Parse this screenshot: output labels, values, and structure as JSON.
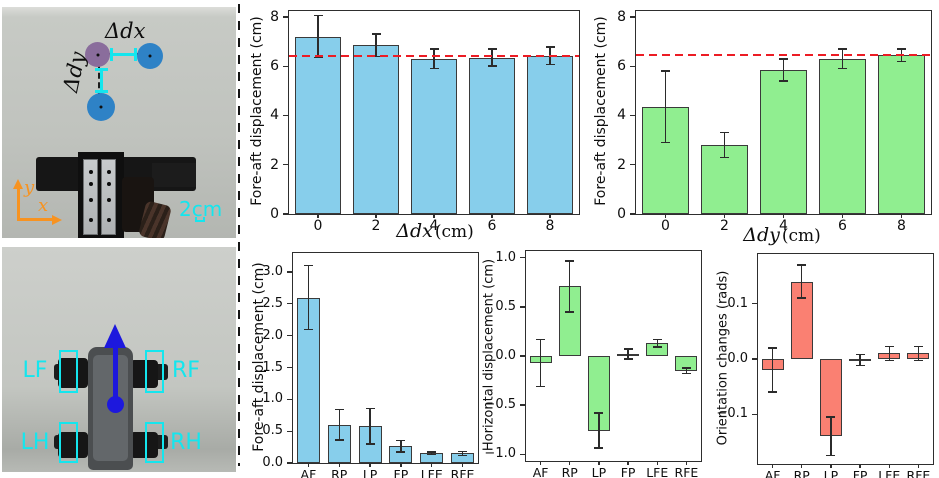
{
  "photos": {
    "top": {
      "dx_label": "Δdx",
      "dy_label": "Δdy",
      "axis_x_label": "x",
      "axis_y_label": "y",
      "scale_label": "2cm",
      "annotation_color": "#14e6ee",
      "axis_color": "#f79321",
      "marker_purple": "#8a6d9c",
      "marker_blue": "#2e82c6"
    },
    "bottom": {
      "foot_labels": {
        "lf": "LF",
        "rf": "RF",
        "lh": "LH",
        "rh": "RH"
      },
      "heading_arrow_color": "#1d18dd",
      "annotation_color": "#14e6ee"
    }
  },
  "chart_data": [
    {
      "id": "foreaft-vs-dx",
      "type": "bar",
      "title": "",
      "ylabel": "Fore-aft displacement (cm)",
      "xlabel_math": "Δdx",
      "xlabel_unit": "(cm)",
      "categories": [
        "0",
        "2",
        "4",
        "6",
        "8"
      ],
      "values": [
        7.2,
        6.85,
        6.3,
        6.35,
        6.42
      ],
      "errors": [
        0.85,
        0.45,
        0.4,
        0.35,
        0.35
      ],
      "ylim": [
        0,
        8.24
      ],
      "ytick_values": [
        0,
        2,
        4,
        6,
        8
      ],
      "ytick_labels": [
        "0",
        "2",
        "4",
        "6",
        "8"
      ],
      "ref_line": 6.42,
      "ref_color": "#ec1c24",
      "bar_color": "#87ceeb",
      "bar_edge": "#3a3a3a",
      "bar_frac": 0.78,
      "grid": false,
      "legend": null
    },
    {
      "id": "foreaft-vs-dy",
      "type": "bar",
      "title": "",
      "ylabel": "Fore-aft displacement (cm)",
      "xlabel_math": "Δdy",
      "xlabel_unit": "(cm)",
      "categories": [
        "0",
        "2",
        "4",
        "6",
        "8"
      ],
      "values": [
        4.35,
        2.8,
        5.85,
        6.3,
        6.45
      ],
      "errors": [
        1.45,
        0.5,
        0.45,
        0.4,
        0.25
      ],
      "ylim": [
        0,
        8.24
      ],
      "ytick_values": [
        0,
        2,
        4,
        6,
        8
      ],
      "ytick_labels": [
        "0",
        "2",
        "4",
        "6",
        "8"
      ],
      "ref_line": 6.45,
      "ref_color": "#ec1c24",
      "bar_color": "#90ee90",
      "bar_edge": "#3a3a3a",
      "bar_frac": 0.78,
      "grid": false,
      "legend": null
    },
    {
      "id": "foreaft-by-condition",
      "type": "bar",
      "title": "",
      "ylabel": "Fore-aft displacement (cm)",
      "xlabel_math": "",
      "xlabel_unit": "",
      "categories": [
        "AF",
        "RP",
        "LP",
        "FP",
        "LFE",
        "RFE"
      ],
      "values": [
        2.6,
        0.6,
        0.58,
        0.26,
        0.15,
        0.15
      ],
      "errors": [
        0.5,
        0.24,
        0.28,
        0.09,
        0.02,
        0.03
      ],
      "ylim": [
        0,
        3.3
      ],
      "ytick_values": [
        0,
        0.5,
        1,
        1.5,
        2,
        2.5,
        3
      ],
      "ytick_labels": [
        "0.0",
        "0.5",
        "1.0",
        "1.5",
        "2.0",
        "2.5",
        "3.0"
      ],
      "ref_line": null,
      "ref_color": "#ec1c24",
      "bar_color": "#87ceeb",
      "bar_edge": "#3a3a3a",
      "bar_frac": 0.75,
      "grid": false,
      "legend": null
    },
    {
      "id": "horizontal-by-condition",
      "type": "bar",
      "title": "",
      "ylabel": "Horizontal displacement (cm)",
      "xlabel_math": "",
      "xlabel_unit": "",
      "categories": [
        "AF",
        "RP",
        "LP",
        "FP",
        "LFE",
        "RFE"
      ],
      "values": [
        -0.07,
        0.71,
        -0.76,
        0.02,
        0.13,
        -0.15
      ],
      "errors": [
        0.24,
        0.26,
        0.18,
        0.05,
        0.04,
        0.03
      ],
      "ylim": [
        -1.07,
        1.07
      ],
      "ytick_values": [
        1,
        0.5,
        0,
        -0.5,
        -1
      ],
      "ytick_labels": [
        "1.0",
        "0.5",
        "0.0",
        "−0.5",
        "−1.0"
      ],
      "ref_line": null,
      "ref_color": "#ec1c24",
      "bar_color": "#90ee90",
      "bar_edge": "#3a3a3a",
      "bar_frac": 0.75,
      "grid": false,
      "legend": null
    },
    {
      "id": "orientation-by-condition",
      "type": "bar",
      "title": "",
      "ylabel": "Orientation changes (rads)",
      "xlabel_math": "",
      "xlabel_unit": "",
      "categories": [
        "AF",
        "RP",
        "LP",
        "FP",
        "LFE",
        "RFE"
      ],
      "values": [
        -0.02,
        0.14,
        -0.14,
        -0.002,
        0.01,
        0.01
      ],
      "errors": [
        0.04,
        0.03,
        0.035,
        0.01,
        0.013,
        0.013
      ],
      "ylim": [
        -0.19,
        0.19
      ],
      "ytick_values": [
        0.1,
        0,
        -0.1
      ],
      "ytick_labels": [
        "0.1",
        "0.0",
        "−0.1"
      ],
      "ref_line": null,
      "ref_color": "#ec1c24",
      "bar_color": "#fa8072",
      "bar_edge": "#3a3a3a",
      "bar_frac": 0.75,
      "grid": false,
      "legend": null
    }
  ]
}
